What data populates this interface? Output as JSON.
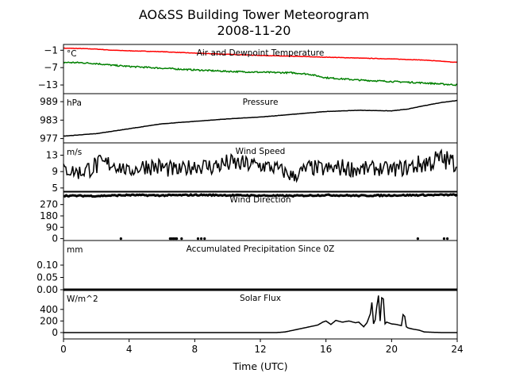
{
  "figure": {
    "title_line1": "AO&SS Building Tower Meteorogram",
    "title_line2": "2008-11-20",
    "xlabel": "Time (UTC)",
    "xticks": [
      0,
      4,
      8,
      12,
      16,
      20,
      24
    ],
    "xtick_labels": [
      "0",
      "4",
      "8",
      "12",
      "16",
      "20",
      "24"
    ]
  },
  "chart_data": [
    {
      "type": "line",
      "title": "Air and Dewpoint Temperature",
      "unit": "°C",
      "ylim": [
        -16,
        1
      ],
      "yticks": [
        -1,
        -7,
        -13
      ],
      "ytick_labels": [
        "−1",
        "−7",
        "−13"
      ],
      "series": [
        {
          "color": "#ff0000",
          "x": [
            0,
            1,
            2,
            3,
            4,
            6,
            8,
            10,
            12,
            14,
            16,
            18,
            20,
            22,
            24
          ],
          "values": [
            -0.3,
            -0.4,
            -0.6,
            -1.0,
            -1.2,
            -1.5,
            -2.0,
            -2.4,
            -2.8,
            -3.1,
            -3.4,
            -3.7,
            -4.0,
            -4.4,
            -5.2
          ]
        },
        {
          "color": "#008000",
          "x": [
            0,
            1,
            2,
            3,
            4,
            6,
            8,
            10,
            12,
            14,
            15,
            16,
            18,
            20,
            22,
            24
          ],
          "values": [
            -5.2,
            -5.3,
            -5.6,
            -6.2,
            -6.6,
            -7.2,
            -7.8,
            -8.3,
            -8.6,
            -8.8,
            -9.3,
            -10.5,
            -11.3,
            -11.8,
            -12.3,
            -13.0
          ]
        }
      ]
    },
    {
      "type": "line",
      "title": "Pressure",
      "unit": "hPa",
      "ylim": [
        975.6,
        991.6
      ],
      "yticks": [
        977,
        983,
        989
      ],
      "ytick_labels": [
        "977",
        "983",
        "989"
      ],
      "series": [
        {
          "color": "#000000",
          "x": [
            0,
            2,
            4,
            6,
            8,
            10,
            12,
            14,
            16,
            18,
            20,
            21,
            22,
            23,
            24
          ],
          "values": [
            977.8,
            978.6,
            980.2,
            981.8,
            982.6,
            983.4,
            984.0,
            984.9,
            985.8,
            986.2,
            986.0,
            986.6,
            987.7,
            988.7,
            989.4
          ]
        }
      ]
    },
    {
      "type": "line",
      "title": "Wind Speed",
      "unit": "m/s",
      "ylim": [
        4,
        16
      ],
      "yticks": [
        5,
        9,
        13
      ],
      "ytick_labels": [
        "5",
        "9",
        "13"
      ],
      "series": [
        {
          "color": "#000000",
          "x": [
            0,
            1,
            2,
            3,
            4,
            5,
            6,
            7,
            8,
            9,
            10,
            11,
            12,
            13,
            14,
            15,
            16,
            17,
            18,
            19,
            20,
            21,
            22,
            23,
            24
          ],
          "values": [
            9.5,
            8.8,
            10.5,
            11.0,
            9.0,
            10.5,
            10.0,
            9.2,
            10.5,
            10.2,
            11.0,
            10.8,
            10.5,
            9.8,
            7.8,
            10.0,
            9.5,
            10.0,
            9.5,
            9.8,
            9.5,
            10.0,
            11.0,
            12.0,
            11.0
          ],
          "amplitude": [
            1.6,
            2.0,
            2.6,
            2.2,
            1.4,
            2.2,
            2.4,
            1.8,
            2.0,
            2.2,
            2.4,
            2.2,
            2.0,
            1.8,
            1.8,
            2.0,
            2.0,
            2.2,
            2.0,
            1.8,
            1.8,
            2.2,
            2.6,
            2.8,
            2.4
          ]
        }
      ]
    },
    {
      "type": "scatter",
      "title": "Wind Direction",
      "unit": "",
      "ylim": [
        -15,
        375
      ],
      "yticks": [
        0,
        90,
        180,
        270
      ],
      "ytick_labels": [
        "0",
        "90",
        "180",
        "270"
      ],
      "series": [
        {
          "color": "#000000",
          "x": [
            0,
            2,
            4,
            6,
            8,
            10,
            12,
            14,
            16,
            18,
            20,
            22,
            24
          ],
          "values": [
            340,
            338,
            345,
            342,
            346,
            344,
            341,
            339,
            345,
            340,
            343,
            345,
            347
          ],
          "spread": 10
        },
        {
          "color": "#000000",
          "x": [
            3.5,
            6.5,
            6.6,
            6.7,
            6.8,
            6.9,
            7.2,
            8.2,
            8.4,
            8.6,
            21.6,
            23.2,
            23.4
          ],
          "values": [
            0,
            0,
            0,
            0,
            0,
            0,
            0,
            0,
            0,
            0,
            0,
            0,
            0
          ]
        }
      ]
    },
    {
      "type": "line",
      "title": "Accumulated Precipitation Since 0Z",
      "unit": "mm",
      "ylim": [
        0,
        0.2
      ],
      "yticks": [
        0.0,
        0.05,
        0.1
      ],
      "ytick_labels": [
        "0.00",
        "0.05",
        "0.10"
      ],
      "series": [
        {
          "color": "#000000",
          "x": [
            0,
            24
          ],
          "values": [
            0,
            0
          ]
        }
      ]
    },
    {
      "type": "line",
      "title": "Solar Flux",
      "unit": "W/m^2",
      "ylim": [
        -110,
        740
      ],
      "yticks": [
        0,
        200,
        400
      ],
      "ytick_labels": [
        "0",
        "200",
        "400"
      ],
      "series": [
        {
          "color": "#000000",
          "x": [
            0,
            13,
            13.5,
            14,
            14.5,
            15,
            15.5,
            15.8,
            16,
            16.3,
            16.6,
            17,
            17.4,
            17.8,
            18,
            18.3,
            18.5,
            18.7,
            18.8,
            18.9,
            19.0,
            19.1,
            19.2,
            19.3,
            19.4,
            19.5,
            19.6,
            19.7,
            19.8,
            20,
            20.3,
            20.6,
            20.7,
            20.8,
            20.9,
            21,
            21.3,
            21.7,
            22,
            22.5,
            23,
            24
          ],
          "values": [
            0,
            0,
            10,
            40,
            70,
            100,
            130,
            180,
            200,
            140,
            210,
            180,
            200,
            170,
            180,
            100,
            170,
            320,
            520,
            150,
            220,
            450,
            640,
            200,
            600,
            580,
            150,
            180,
            170,
            150,
            140,
            120,
            310,
            280,
            100,
            80,
            60,
            40,
            10,
            5,
            0,
            0
          ]
        }
      ]
    }
  ]
}
